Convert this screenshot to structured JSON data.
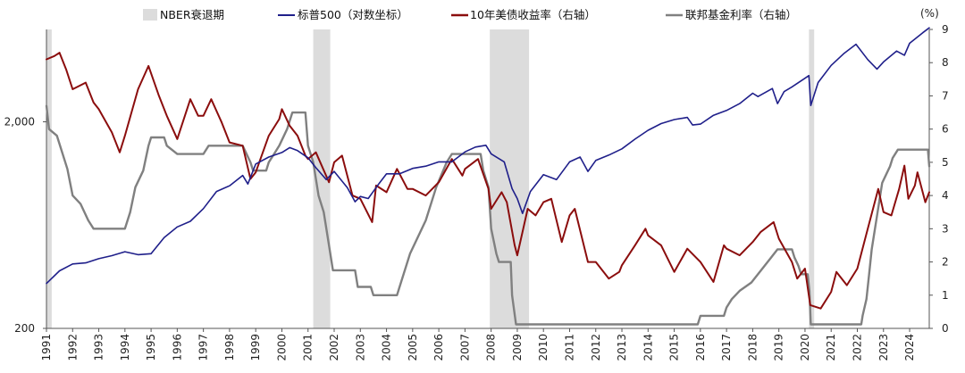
{
  "chart_data": {
    "type": "line",
    "title": "",
    "unit_right": "(%)",
    "grid": false,
    "legend_position": "top",
    "legend": {
      "recession": "NBER衰退期",
      "sp500": "标普500（对数坐标）",
      "treasury10y": "10年美债收益率（右轴）",
      "fedfunds": "联邦基金利率（右轴）"
    },
    "x_range": [
      1991.0,
      2024.75
    ],
    "x_ticks": [
      "1991",
      "1992",
      "1993",
      "1994",
      "1995",
      "1996",
      "1997",
      "1998",
      "1999",
      "2000",
      "2001",
      "2002",
      "2003",
      "2004",
      "2005",
      "2006",
      "2007",
      "2008",
      "2009",
      "2010",
      "2011",
      "2012",
      "2013",
      "2014",
      "2015",
      "2016",
      "2017",
      "2018",
      "2019",
      "2020",
      "2021",
      "2022",
      "2023",
      "2024"
    ],
    "y_left": {
      "scale": "log",
      "range": [
        200,
        5600
      ],
      "ticks": [
        "200",
        "2,000"
      ],
      "tick_values": [
        200,
        2000
      ]
    },
    "y_right": {
      "range": [
        0,
        9
      ],
      "ticks": [
        "0",
        "1",
        "2",
        "3",
        "4",
        "5",
        "6",
        "7",
        "8",
        "9"
      ]
    },
    "colors": {
      "recession": "#dcdcdc",
      "sp500": "#1f1f8a",
      "treasury10y": "#8b0d0d",
      "fedfunds": "#808080",
      "axis": "#555555"
    },
    "recessions": [
      [
        1991.0,
        1991.2
      ],
      [
        2001.2,
        2001.85
      ],
      [
        2007.95,
        2009.45
      ],
      [
        2020.15,
        2020.35
      ]
    ],
    "series": [
      {
        "name": "标普500（对数坐标）",
        "axis": "left",
        "points": [
          [
            1991.0,
            330
          ],
          [
            1991.5,
            380
          ],
          [
            1992.0,
            410
          ],
          [
            1992.5,
            415
          ],
          [
            1993.0,
            435
          ],
          [
            1993.5,
            450
          ],
          [
            1994.0,
            470
          ],
          [
            1994.5,
            455
          ],
          [
            1995.0,
            460
          ],
          [
            1995.5,
            550
          ],
          [
            1996.0,
            620
          ],
          [
            1996.5,
            660
          ],
          [
            1997.0,
            760
          ],
          [
            1997.5,
            920
          ],
          [
            1998.0,
            980
          ],
          [
            1998.5,
            1100
          ],
          [
            1998.7,
            1000
          ],
          [
            1999.0,
            1250
          ],
          [
            1999.5,
            1350
          ],
          [
            2000.0,
            1420
          ],
          [
            2000.3,
            1500
          ],
          [
            2000.6,
            1450
          ],
          [
            2001.0,
            1340
          ],
          [
            2001.3,
            1200
          ],
          [
            2001.7,
            1050
          ],
          [
            2002.0,
            1150
          ],
          [
            2002.5,
            960
          ],
          [
            2002.8,
            820
          ],
          [
            2003.0,
            870
          ],
          [
            2003.3,
            850
          ],
          [
            2003.7,
            1000
          ],
          [
            2004.0,
            1120
          ],
          [
            2004.5,
            1120
          ],
          [
            2005.0,
            1190
          ],
          [
            2005.5,
            1220
          ],
          [
            2006.0,
            1280
          ],
          [
            2006.5,
            1280
          ],
          [
            2007.0,
            1430
          ],
          [
            2007.4,
            1510
          ],
          [
            2007.8,
            1540
          ],
          [
            2008.0,
            1400
          ],
          [
            2008.5,
            1280
          ],
          [
            2008.8,
            950
          ],
          [
            2009.0,
            850
          ],
          [
            2009.2,
            720
          ],
          [
            2009.5,
            920
          ],
          [
            2010.0,
            1110
          ],
          [
            2010.5,
            1050
          ],
          [
            2011.0,
            1280
          ],
          [
            2011.4,
            1350
          ],
          [
            2011.7,
            1150
          ],
          [
            2012.0,
            1300
          ],
          [
            2012.5,
            1380
          ],
          [
            2013.0,
            1480
          ],
          [
            2013.5,
            1650
          ],
          [
            2014.0,
            1820
          ],
          [
            2014.5,
            1960
          ],
          [
            2015.0,
            2050
          ],
          [
            2015.5,
            2100
          ],
          [
            2015.7,
            1930
          ],
          [
            2016.0,
            1950
          ],
          [
            2016.5,
            2150
          ],
          [
            2017.0,
            2270
          ],
          [
            2017.5,
            2450
          ],
          [
            2018.0,
            2750
          ],
          [
            2018.2,
            2650
          ],
          [
            2018.75,
            2900
          ],
          [
            2018.95,
            2450
          ],
          [
            2019.2,
            2800
          ],
          [
            2019.5,
            2950
          ],
          [
            2020.0,
            3250
          ],
          [
            2020.15,
            3350
          ],
          [
            2020.22,
            2400
          ],
          [
            2020.5,
            3100
          ],
          [
            2021.0,
            3750
          ],
          [
            2021.5,
            4300
          ],
          [
            2021.95,
            4750
          ],
          [
            2022.4,
            4000
          ],
          [
            2022.75,
            3600
          ],
          [
            2023.0,
            3900
          ],
          [
            2023.5,
            4400
          ],
          [
            2023.8,
            4200
          ],
          [
            2024.0,
            4800
          ],
          [
            2024.5,
            5400
          ],
          [
            2024.75,
            5700
          ]
        ]
      },
      {
        "name": "10年美债收益率（右轴）",
        "axis": "right",
        "points": [
          [
            1991.0,
            8.1
          ],
          [
            1991.3,
            8.2
          ],
          [
            1991.5,
            8.3
          ],
          [
            1991.75,
            7.8
          ],
          [
            1992.0,
            7.2
          ],
          [
            1992.5,
            7.4
          ],
          [
            1992.8,
            6.8
          ],
          [
            1993.0,
            6.6
          ],
          [
            1993.5,
            5.9
          ],
          [
            1993.8,
            5.3
          ],
          [
            1994.0,
            5.8
          ],
          [
            1994.5,
            7.2
          ],
          [
            1994.9,
            7.9
          ],
          [
            1995.3,
            7.0
          ],
          [
            1995.6,
            6.4
          ],
          [
            1996.0,
            5.7
          ],
          [
            1996.5,
            6.9
          ],
          [
            1996.8,
            6.4
          ],
          [
            1997.0,
            6.4
          ],
          [
            1997.3,
            6.9
          ],
          [
            1997.7,
            6.2
          ],
          [
            1998.0,
            5.6
          ],
          [
            1998.5,
            5.5
          ],
          [
            1998.8,
            4.5
          ],
          [
            1999.0,
            4.7
          ],
          [
            1999.5,
            5.8
          ],
          [
            1999.9,
            6.3
          ],
          [
            2000.0,
            6.6
          ],
          [
            2000.3,
            6.1
          ],
          [
            2000.6,
            5.8
          ],
          [
            2000.9,
            5.2
          ],
          [
            2001.0,
            5.1
          ],
          [
            2001.3,
            5.3
          ],
          [
            2001.8,
            4.4
          ],
          [
            2002.0,
            5.0
          ],
          [
            2002.3,
            5.2
          ],
          [
            2002.7,
            4.0
          ],
          [
            2003.0,
            3.9
          ],
          [
            2003.45,
            3.2
          ],
          [
            2003.6,
            4.3
          ],
          [
            2004.0,
            4.1
          ],
          [
            2004.4,
            4.8
          ],
          [
            2004.8,
            4.2
          ],
          [
            2005.0,
            4.2
          ],
          [
            2005.5,
            4.0
          ],
          [
            2006.0,
            4.4
          ],
          [
            2006.5,
            5.1
          ],
          [
            2006.9,
            4.6
          ],
          [
            2007.0,
            4.8
          ],
          [
            2007.5,
            5.1
          ],
          [
            2007.9,
            4.2
          ],
          [
            2008.0,
            3.6
          ],
          [
            2008.4,
            4.1
          ],
          [
            2008.6,
            3.8
          ],
          [
            2008.9,
            2.5
          ],
          [
            2009.0,
            2.2
          ],
          [
            2009.4,
            3.6
          ],
          [
            2009.7,
            3.4
          ],
          [
            2010.0,
            3.8
          ],
          [
            2010.3,
            3.9
          ],
          [
            2010.7,
            2.6
          ],
          [
            2011.0,
            3.4
          ],
          [
            2011.2,
            3.6
          ],
          [
            2011.7,
            2.0
          ],
          [
            2012.0,
            2.0
          ],
          [
            2012.5,
            1.5
          ],
          [
            2012.9,
            1.7
          ],
          [
            2013.0,
            1.9
          ],
          [
            2013.5,
            2.5
          ],
          [
            2013.9,
            3.0
          ],
          [
            2014.0,
            2.8
          ],
          [
            2014.5,
            2.5
          ],
          [
            2015.0,
            1.7
          ],
          [
            2015.5,
            2.4
          ],
          [
            2016.0,
            2.0
          ],
          [
            2016.5,
            1.4
          ],
          [
            2016.9,
            2.5
          ],
          [
            2017.0,
            2.4
          ],
          [
            2017.5,
            2.2
          ],
          [
            2018.0,
            2.6
          ],
          [
            2018.3,
            2.9
          ],
          [
            2018.8,
            3.2
          ],
          [
            2019.0,
            2.7
          ],
          [
            2019.5,
            2.0
          ],
          [
            2019.7,
            1.5
          ],
          [
            2020.0,
            1.8
          ],
          [
            2020.2,
            0.7
          ],
          [
            2020.6,
            0.6
          ],
          [
            2021.0,
            1.1
          ],
          [
            2021.2,
            1.7
          ],
          [
            2021.6,
            1.3
          ],
          [
            2022.0,
            1.8
          ],
          [
            2022.4,
            3.0
          ],
          [
            2022.8,
            4.2
          ],
          [
            2023.0,
            3.5
          ],
          [
            2023.3,
            3.4
          ],
          [
            2023.6,
            4.2
          ],
          [
            2023.8,
            4.9
          ],
          [
            2023.95,
            3.9
          ],
          [
            2024.2,
            4.3
          ],
          [
            2024.3,
            4.7
          ],
          [
            2024.6,
            3.8
          ],
          [
            2024.75,
            4.1
          ]
        ]
      },
      {
        "name": "联邦基金利率（右轴）",
        "axis": "right",
        "points": [
          [
            1991.0,
            6.7
          ],
          [
            1991.1,
            6.0
          ],
          [
            1991.4,
            5.8
          ],
          [
            1991.8,
            4.8
          ],
          [
            1992.0,
            4.0
          ],
          [
            1992.3,
            3.75
          ],
          [
            1992.6,
            3.25
          ],
          [
            1992.8,
            3.0
          ],
          [
            1993.0,
            3.0
          ],
          [
            1993.9,
            3.0
          ],
          [
            1994.0,
            3.0
          ],
          [
            1994.2,
            3.5
          ],
          [
            1994.4,
            4.25
          ],
          [
            1994.7,
            4.75
          ],
          [
            1994.9,
            5.5
          ],
          [
            1995.0,
            5.75
          ],
          [
            1995.5,
            5.75
          ],
          [
            1995.6,
            5.5
          ],
          [
            1996.0,
            5.25
          ],
          [
            1996.2,
            5.25
          ],
          [
            1997.0,
            5.25
          ],
          [
            1997.2,
            5.5
          ],
          [
            1998.5,
            5.5
          ],
          [
            1998.8,
            5.0
          ],
          [
            1998.9,
            4.75
          ],
          [
            1999.4,
            4.75
          ],
          [
            1999.5,
            5.0
          ],
          [
            1999.7,
            5.25
          ],
          [
            1999.9,
            5.5
          ],
          [
            2000.2,
            6.0
          ],
          [
            2000.4,
            6.5
          ],
          [
            2000.9,
            6.5
          ],
          [
            2001.0,
            5.5
          ],
          [
            2001.2,
            5.0
          ],
          [
            2001.4,
            4.0
          ],
          [
            2001.6,
            3.5
          ],
          [
            2001.8,
            2.5
          ],
          [
            2001.95,
            1.75
          ],
          [
            2002.8,
            1.75
          ],
          [
            2002.9,
            1.25
          ],
          [
            2003.4,
            1.25
          ],
          [
            2003.5,
            1.0
          ],
          [
            2004.4,
            1.0
          ],
          [
            2004.5,
            1.25
          ],
          [
            2004.9,
            2.25
          ],
          [
            2005.5,
            3.25
          ],
          [
            2005.9,
            4.25
          ],
          [
            2006.3,
            5.0
          ],
          [
            2006.5,
            5.25
          ],
          [
            2007.6,
            5.25
          ],
          [
            2007.7,
            4.75
          ],
          [
            2007.9,
            4.25
          ],
          [
            2008.0,
            3.0
          ],
          [
            2008.2,
            2.25
          ],
          [
            2008.3,
            2.0
          ],
          [
            2008.75,
            2.0
          ],
          [
            2008.8,
            1.0
          ],
          [
            2008.95,
            0.12
          ],
          [
            2009.0,
            0.12
          ],
          [
            2015.9,
            0.12
          ],
          [
            2016.0,
            0.38
          ],
          [
            2016.9,
            0.38
          ],
          [
            2017.0,
            0.63
          ],
          [
            2017.2,
            0.88
          ],
          [
            2017.5,
            1.13
          ],
          [
            2017.95,
            1.38
          ],
          [
            2018.2,
            1.63
          ],
          [
            2018.45,
            1.88
          ],
          [
            2018.7,
            2.13
          ],
          [
            2018.95,
            2.38
          ],
          [
            2019.5,
            2.38
          ],
          [
            2019.6,
            2.13
          ],
          [
            2019.75,
            1.88
          ],
          [
            2019.85,
            1.63
          ],
          [
            2020.1,
            1.63
          ],
          [
            2020.17,
            1.13
          ],
          [
            2020.22,
            0.12
          ],
          [
            2022.15,
            0.12
          ],
          [
            2022.2,
            0.38
          ],
          [
            2022.35,
            0.88
          ],
          [
            2022.45,
            1.63
          ],
          [
            2022.55,
            2.38
          ],
          [
            2022.7,
            3.13
          ],
          [
            2022.85,
            3.88
          ],
          [
            2022.95,
            4.38
          ],
          [
            2023.1,
            4.63
          ],
          [
            2023.25,
            4.88
          ],
          [
            2023.35,
            5.13
          ],
          [
            2023.55,
            5.38
          ],
          [
            2024.7,
            5.38
          ],
          [
            2024.75,
            4.88
          ]
        ]
      }
    ]
  }
}
